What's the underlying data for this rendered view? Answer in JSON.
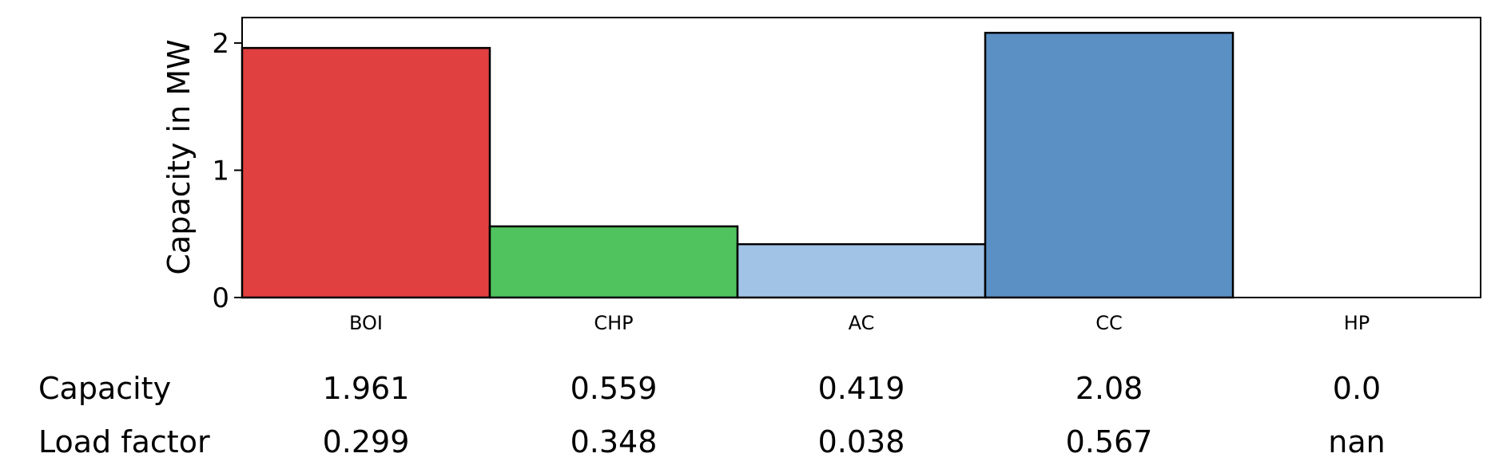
{
  "chart_data": {
    "type": "bar",
    "categories": [
      "BOI",
      "CHP",
      "AC",
      "CC",
      "HP"
    ],
    "values": [
      1.961,
      0.559,
      0.419,
      2.08,
      0.0
    ],
    "colors": [
      "#e04040",
      "#50c35e",
      "#a1c4e6",
      "#5b90c4",
      "#ffffff"
    ],
    "ylabel": "Capacity in MW",
    "ylim": [
      0,
      2.2
    ],
    "yticks": [
      "0",
      "1",
      "2"
    ],
    "ytick_values": [
      0,
      1,
      2
    ],
    "grid": false,
    "table": {
      "rows": [
        {
          "label": "Capacity",
          "values": [
            "1.961",
            "0.559",
            "0.419",
            "2.08",
            "0.0"
          ]
        },
        {
          "label": "Load factor",
          "values": [
            "0.299",
            "0.348",
            "0.038",
            "0.567",
            "nan"
          ]
        }
      ]
    }
  }
}
